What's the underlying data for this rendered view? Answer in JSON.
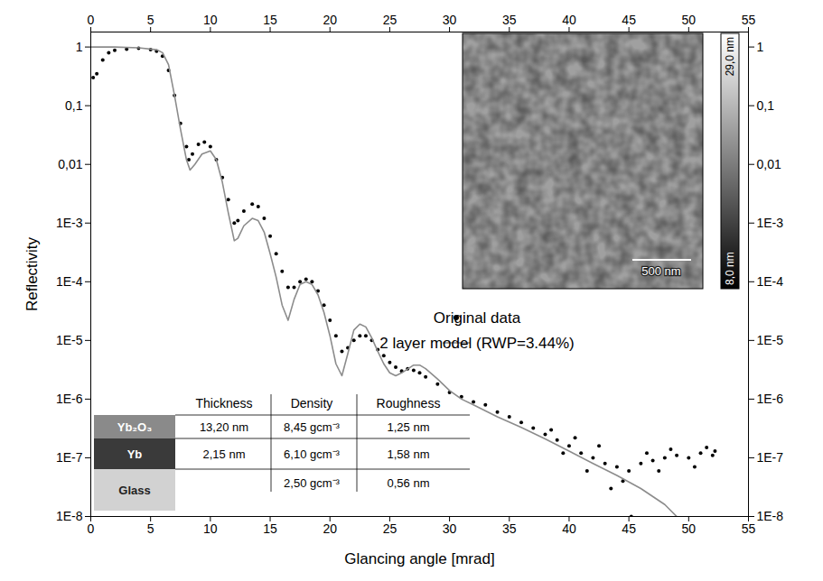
{
  "chart_data": {
    "type": "scatter",
    "x_label": "Glancing angle [mrad]",
    "y_label": "Reflectivity",
    "log": "y",
    "grid": false,
    "legend": "right",
    "xlim": [
      0,
      55
    ],
    "xticks": [
      0,
      5,
      10,
      15,
      20,
      25,
      30,
      35,
      40,
      45,
      50,
      55
    ],
    "ylim": [
      1e-08,
      1.8
    ],
    "yticks": [
      {
        "value": 1e-08,
        "label": "1E-8"
      },
      {
        "value": 1e-07,
        "label": "1E-7"
      },
      {
        "value": 1e-06,
        "label": "1E-6"
      },
      {
        "value": 1e-05,
        "label": "1E-5"
      },
      {
        "value": 0.0001,
        "label": "1E-4"
      },
      {
        "value": 0.001,
        "label": "1E-3"
      },
      {
        "value": 0.01,
        "label": "0,01"
      },
      {
        "value": 0.1,
        "label": "0,1"
      },
      1
    ],
    "series": [
      {
        "name": "Original data",
        "type": "scatter",
        "color": "#000000",
        "marker": "circle",
        "x": [
          0.2,
          0.5,
          1,
          1.5,
          2,
          3,
          4,
          5,
          5.5,
          6,
          6.5,
          7,
          7.5,
          8,
          8.2,
          8.5,
          9,
          9.5,
          10,
          10.5,
          11,
          11.5,
          12,
          12.3,
          12.8,
          13.5,
          14,
          14.5,
          15,
          15.5,
          16,
          16.5,
          17,
          17.5,
          18,
          18.5,
          19,
          19.5,
          20,
          20.5,
          21,
          21.5,
          22,
          22.5,
          23,
          23.5,
          24,
          24.5,
          25,
          25.5,
          26,
          26.5,
          27,
          27.5,
          28,
          29,
          30,
          31,
          32,
          33,
          34,
          35,
          36,
          37,
          38,
          38.5,
          39,
          39.5,
          40,
          40.5,
          41,
          41.5,
          42,
          42.5,
          43,
          43.5,
          44,
          44.5,
          45,
          45.2,
          46,
          46.5,
          47,
          47.5,
          48,
          48.5,
          49,
          50,
          50.5,
          51,
          51.5,
          52,
          52.2
        ],
        "values": [
          0.3,
          0.35,
          0.6,
          0.8,
          0.88,
          0.92,
          0.95,
          0.9,
          0.85,
          0.7,
          0.4,
          0.15,
          0.05,
          0.02,
          0.012,
          0.015,
          0.022,
          0.024,
          0.02,
          0.012,
          0.006,
          0.0025,
          0.001,
          0.0011,
          0.0016,
          0.0021,
          0.0019,
          0.0012,
          0.0006,
          0.0003,
          0.00015,
          8e-05,
          8e-05,
          0.0001,
          0.00011,
          0.0001,
          7e-05,
          4e-05,
          2.2e-05,
          1.2e-05,
          6.5e-06,
          7.5e-06,
          1e-05,
          1.2e-05,
          1.2e-05,
          1e-05,
          7e-06,
          5.5e-06,
          4.2e-06,
          3.5e-06,
          3e-06,
          3.3e-06,
          3.1e-06,
          2.8e-06,
          2.4e-06,
          1.8e-06,
          1.3e-06,
          1.1e-06,
          9e-07,
          8e-07,
          6e-07,
          5e-07,
          4e-07,
          3.2e-07,
          2.5e-07,
          3e-07,
          2e-07,
          1.2e-07,
          1.6e-07,
          2.2e-07,
          1.2e-07,
          6e-08,
          1e-07,
          1.6e-07,
          8e-08,
          3e-08,
          7e-08,
          4e-08,
          6e-08,
          1e-08,
          8e-08,
          1.2e-07,
          9e-08,
          6e-08,
          1e-07,
          1.4e-07,
          1.1e-07,
          1e-07,
          7e-08,
          1.2e-07,
          1.5e-07,
          1.1e-07,
          1.3e-07
        ]
      },
      {
        "name": "2 layer model (RWP=3.44%)",
        "type": "line",
        "color": "#8c8c8c",
        "line_style": "solid",
        "x": [
          0,
          2,
          4,
          5.5,
          6,
          6.5,
          7,
          7.5,
          8,
          8.3,
          8.7,
          9.3,
          10,
          10.5,
          11,
          11.5,
          12,
          12.3,
          12.8,
          13.5,
          14,
          14.5,
          15,
          15.5,
          16,
          16.5,
          17,
          17.5,
          18,
          18.5,
          19,
          19.5,
          20,
          20.5,
          21,
          21.5,
          22,
          22.5,
          23,
          23.5,
          24,
          24.5,
          25,
          25.5,
          26,
          27,
          27.5,
          28,
          29,
          30,
          31,
          32,
          34,
          36,
          38,
          40,
          42,
          44,
          46,
          48,
          49
        ],
        "values": [
          1,
          1,
          0.97,
          0.9,
          0.8,
          0.5,
          0.15,
          0.04,
          0.012,
          0.008,
          0.01,
          0.015,
          0.017,
          0.012,
          0.005,
          0.0015,
          0.0005,
          0.00055,
          0.0009,
          0.0012,
          0.0011,
          0.0007,
          0.0003,
          0.00012,
          4e-05,
          2.2e-05,
          5e-05,
          9e-05,
          0.0001,
          9e-05,
          6e-05,
          3e-05,
          1.2e-05,
          4e-06,
          2.5e-06,
          6e-06,
          1.5e-05,
          1.9e-05,
          1.7e-05,
          1.1e-05,
          6.5e-06,
          4e-06,
          2.8e-06,
          2.5e-06,
          2.8e-06,
          3.8e-06,
          3.8e-06,
          3.3e-06,
          2.2e-06,
          1.4e-06,
          1e-06,
          8e-07,
          5e-07,
          3.3e-07,
          2.1e-07,
          1.3e-07,
          8e-08,
          5e-08,
          3e-08,
          1.6e-08,
          1e-08
        ]
      }
    ],
    "layer_table": {
      "columns": [
        "Thickness",
        "Density",
        "Roughness"
      ],
      "rows": [
        {
          "layer": "Yb₂O₃",
          "cells": [
            "13,20 nm",
            "8,45 gcm⁻³",
            "1,25 nm"
          ]
        },
        {
          "layer": "Yb",
          "cells": [
            "2,15 nm",
            "6,10 gcm⁻³",
            "1,58 nm"
          ]
        },
        {
          "layer": "Glass",
          "cells": [
            null,
            "2,50 gcm⁻³",
            "0,56 nm"
          ]
        }
      ]
    },
    "inset": {
      "scale_bar": "500 nm",
      "colorbar": {
        "range": [
          8,
          29
        ],
        "ticks": [
          {
            "value": 29,
            "label": "29,0 nm"
          },
          {
            "value": 8,
            "label": "8,0 nm"
          }
        ]
      }
    }
  }
}
